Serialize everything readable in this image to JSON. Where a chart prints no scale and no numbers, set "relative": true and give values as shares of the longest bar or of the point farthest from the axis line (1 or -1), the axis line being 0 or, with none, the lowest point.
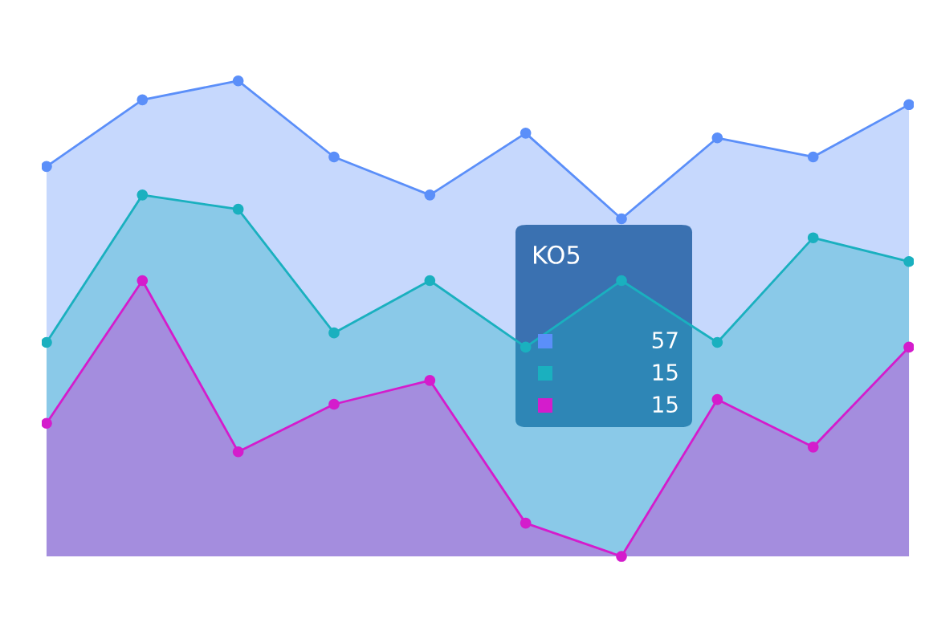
{
  "chart_data": {
    "type": "area",
    "relative": true,
    "categories": [
      null,
      null,
      null,
      null,
      null,
      null,
      null,
      null,
      null,
      null
    ],
    "series": [
      {
        "color": "#5b8ff9",
        "values": [
          0.82,
          0.96,
          1.0,
          0.84,
          0.76,
          0.89,
          0.71,
          0.88,
          0.84,
          0.95
        ]
      },
      {
        "color": "#1ab0bf",
        "values": [
          0.45,
          0.76,
          0.73,
          0.47,
          0.58,
          0.44,
          0.58,
          0.45,
          0.67,
          0.62
        ]
      },
      {
        "color": "#d41ccc",
        "values": [
          0.28,
          0.58,
          0.22,
          0.32,
          0.37,
          0.07,
          0.0,
          0.33,
          0.23,
          0.44
        ]
      }
    ],
    "annotations": [
      "KO5",
      "57",
      "15",
      "15"
    ],
    "marker": "circle"
  }
}
